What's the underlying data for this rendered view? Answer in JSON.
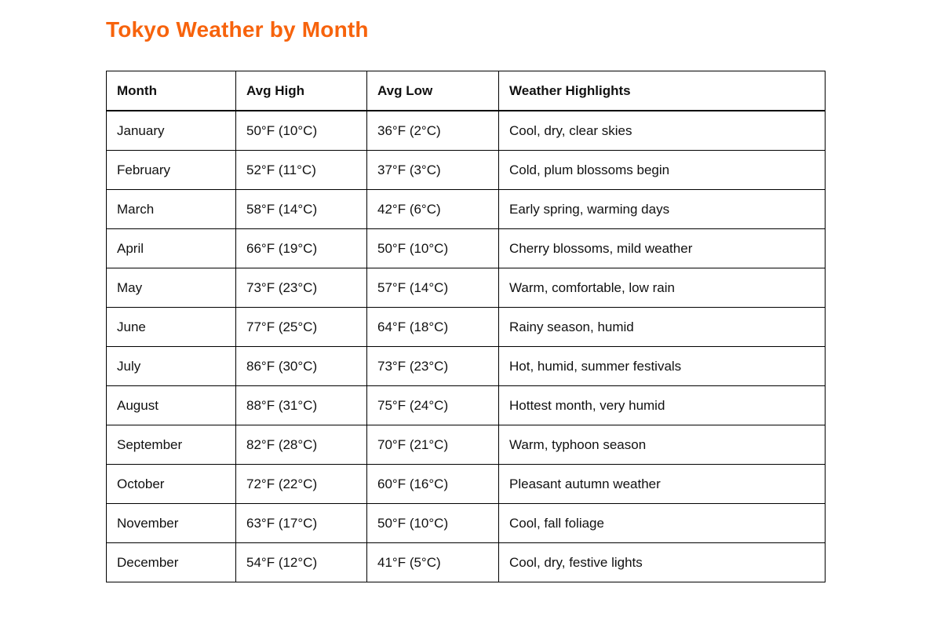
{
  "page": {
    "title": "Tokyo Weather by Month",
    "title_color": "#F7630C"
  },
  "table": {
    "columns": [
      "Month",
      "Avg High",
      "Avg Low",
      "Weather Highlights"
    ],
    "rows": [
      [
        "January",
        "50°F (10°C)",
        "36°F (2°C)",
        "Cool, dry, clear skies"
      ],
      [
        "February",
        "52°F (11°C)",
        "37°F (3°C)",
        "Cold, plum blossoms begin"
      ],
      [
        "March",
        "58°F (14°C)",
        "42°F (6°C)",
        "Early spring, warming days"
      ],
      [
        "April",
        "66°F (19°C)",
        "50°F (10°C)",
        "Cherry blossoms, mild weather"
      ],
      [
        "May",
        "73°F (23°C)",
        "57°F (14°C)",
        "Warm, comfortable, low rain"
      ],
      [
        "June",
        "77°F (25°C)",
        "64°F (18°C)",
        "Rainy season, humid"
      ],
      [
        "July",
        "86°F (30°C)",
        "73°F (23°C)",
        "Hot, humid, summer festivals"
      ],
      [
        "August",
        "88°F (31°C)",
        "75°F (24°C)",
        "Hottest month, very humid"
      ],
      [
        "September",
        "82°F (28°C)",
        "70°F (21°C)",
        "Warm, typhoon season"
      ],
      [
        "October",
        "72°F (22°C)",
        "60°F (16°C)",
        "Pleasant autumn weather"
      ],
      [
        "November",
        "63°F (17°C)",
        "50°F (10°C)",
        "Cool, fall foliage"
      ],
      [
        "December",
        "54°F (12°C)",
        "41°F (5°C)",
        "Cool, dry, festive lights"
      ]
    ]
  }
}
